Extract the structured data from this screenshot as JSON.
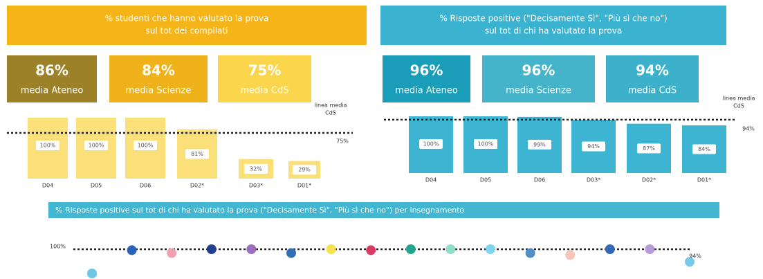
{
  "chart_data": [
    {
      "type": "bar",
      "title": [
        "% studenti che hanno valutato la prova",
        "sul tot dei compilati"
      ],
      "summary": {
        "value_labels": [
          "86%",
          "84%",
          "75%"
        ],
        "labels": [
          "media Ateneo",
          "media Scienze",
          "media CdS"
        ],
        "colors": [
          "#9d8128",
          "#f0b21b",
          "#fbd54b"
        ]
      },
      "title_color": "#f5b417",
      "categories": [
        "D04",
        "D05",
        "D06",
        "D02*",
        "D03*",
        "D01*"
      ],
      "values": [
        100,
        100,
        100,
        81,
        32,
        29
      ],
      "value_labels": [
        "100%",
        "100%",
        "100%",
        "81%",
        "32%",
        "29%"
      ],
      "color": "#fbe07a",
      "ylim": [
        0,
        100
      ],
      "mean_line": 75,
      "mean_label": "75%",
      "mean_line_label": [
        "linea media",
        "CdS"
      ]
    },
    {
      "type": "bar",
      "title": [
        "% Risposte positive (\"Decisamente Sì\", \"Più sì che no\")",
        "sul tot di chi ha valutato la prova"
      ],
      "summary": {
        "value_labels": [
          "96%",
          "96%",
          "94%"
        ],
        "labels": [
          "media Ateneo",
          "media Scienze",
          "media CdS"
        ],
        "colors": [
          "#1a9db8",
          "#45b4cb",
          "#3db0cc"
        ]
      },
      "title_color": "#3bb3d0",
      "categories": [
        "D04",
        "D05",
        "D06",
        "D03*",
        "D02*",
        "D01*"
      ],
      "values": [
        100,
        100,
        99,
        94,
        87,
        84
      ],
      "value_labels": [
        "100%",
        "100%",
        "99%",
        "94%",
        "87%",
        "84%"
      ],
      "color": "#3cb4d2",
      "ylim": [
        0,
        100
      ],
      "mean_line": 94,
      "mean_label": "94%",
      "mean_line_label": [
        "linea media",
        "CdS"
      ]
    },
    {
      "type": "dot",
      "title": "% Risposte positive sul tot di chi ha valutato la prova (\"Decisamente Sì\", \"Più sì che no\") per insegnamento",
      "title_color": "#43b6d1",
      "values": [
        75,
        99,
        96,
        100,
        100,
        96,
        100,
        99,
        100,
        100,
        100,
        96,
        94,
        100,
        100,
        87
      ],
      "colors": [
        "#6cc6e6",
        "#2a64b8",
        "#f2a0b0",
        "#243f8f",
        "#9a6fc0",
        "#2f6fb3",
        "#f6e24e",
        "#d83a66",
        "#21a58e",
        "#8fdcc8",
        "#7fd4ee",
        "#4f8fc4",
        "#f6c7b8",
        "#3469b5",
        "#b59bd8",
        "#7ac8ea"
      ],
      "ylim": [
        70,
        102
      ],
      "yticks": [
        {
          "value": 100,
          "label": "100%"
        }
      ],
      "annotation": "94%"
    }
  ]
}
